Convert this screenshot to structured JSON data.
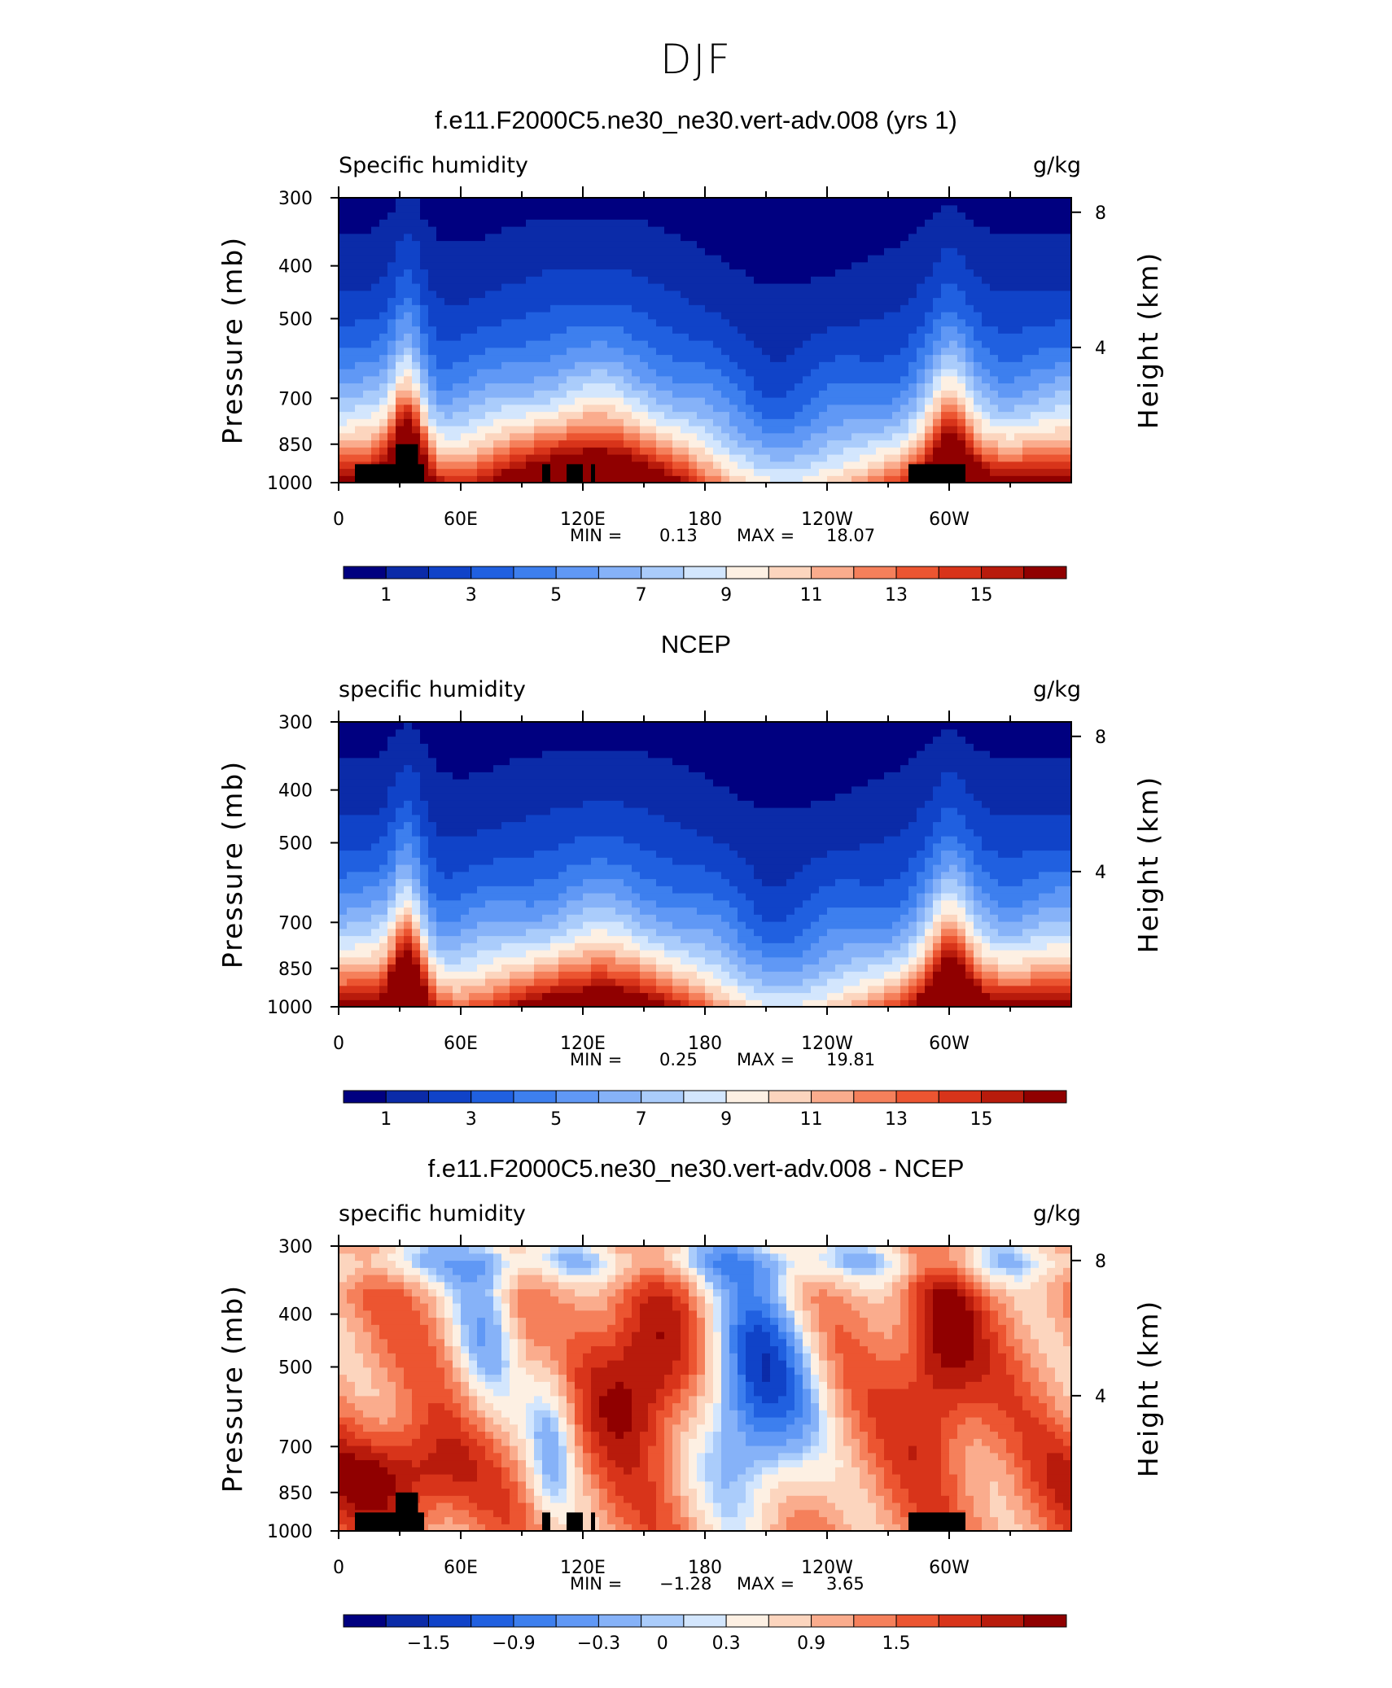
{
  "title": "DJF",
  "colormap": [
    "#000080",
    "#0b2ba8",
    "#1043c8",
    "#2060e0",
    "#3d7fee",
    "#6098f5",
    "#86b2f8",
    "#aaccfb",
    "#d3e6fd",
    "#fdf0e3",
    "#fcd5be",
    "#faac8d",
    "#f5805b",
    "#ec5531",
    "#d8341a",
    "#b81b0c",
    "#900000"
  ],
  "chart_data": [
    {
      "type": "heatmap",
      "panel_title": "f.e11.F2000C5.ne30_ne30.vert-adv.008 (yrs 1)",
      "variable": "Specific humidity",
      "units": "g/kg",
      "xlabel": "",
      "ylabel": "Pressure (mb)",
      "ylabel_right": "Height (km)",
      "x_ticks": [
        "0",
        "60E",
        "120E",
        "180",
        "120W",
        "60W"
      ],
      "x_tick_lon": [
        0,
        60,
        120,
        180,
        240,
        300
      ],
      "y_ticks": [
        "300",
        "400",
        "500",
        "700",
        "850",
        "1000"
      ],
      "y_tick_p": [
        300,
        400,
        500,
        700,
        850,
        1000
      ],
      "height_ticks": [
        "8",
        "4"
      ],
      "height_tick_km": [
        8,
        4
      ],
      "xlim": [
        0,
        360
      ],
      "ylim": [
        1000,
        300
      ],
      "min_label": "MIN =",
      "min": "0.13",
      "max_label": "MAX =",
      "max": "18.07",
      "levels": [
        0,
        1,
        2,
        3,
        4,
        5,
        6,
        7,
        8,
        9,
        10,
        11,
        12,
        13,
        14,
        15,
        16
      ],
      "colorbar_labels": [
        "1",
        "3",
        "5",
        "7",
        "9",
        "11",
        "13",
        "15"
      ],
      "field": "q_model",
      "show_topo": true
    },
    {
      "type": "heatmap",
      "panel_title": "NCEP",
      "variable": "specific humidity",
      "units": "g/kg",
      "xlabel": "",
      "ylabel": "Pressure (mb)",
      "ylabel_right": "Height (km)",
      "x_ticks": [
        "0",
        "60E",
        "120E",
        "180",
        "120W",
        "60W"
      ],
      "x_tick_lon": [
        0,
        60,
        120,
        180,
        240,
        300
      ],
      "y_ticks": [
        "300",
        "400",
        "500",
        "700",
        "850",
        "1000"
      ],
      "y_tick_p": [
        300,
        400,
        500,
        700,
        850,
        1000
      ],
      "height_ticks": [
        "8",
        "4"
      ],
      "height_tick_km": [
        8,
        4
      ],
      "xlim": [
        0,
        360
      ],
      "ylim": [
        1000,
        300
      ],
      "min_label": "MIN =",
      "min": "0.25",
      "max_label": "MAX =",
      "max": "19.81",
      "levels": [
        0,
        1,
        2,
        3,
        4,
        5,
        6,
        7,
        8,
        9,
        10,
        11,
        12,
        13,
        14,
        15,
        16
      ],
      "colorbar_labels": [
        "1",
        "3",
        "5",
        "7",
        "9",
        "11",
        "13",
        "15"
      ],
      "field": "q_obs",
      "show_topo": false
    },
    {
      "type": "heatmap",
      "panel_title": "f.e11.F2000C5.ne30_ne30.vert-adv.008 - NCEP",
      "variable": "specific humidity",
      "units": "g/kg",
      "xlabel": "",
      "ylabel": "Pressure (mb)",
      "ylabel_right": "Height (km)",
      "x_ticks": [
        "0",
        "60E",
        "120E",
        "180",
        "120W",
        "60W"
      ],
      "x_tick_lon": [
        0,
        60,
        120,
        180,
        240,
        300
      ],
      "y_ticks": [
        "300",
        "400",
        "500",
        "700",
        "850",
        "1000"
      ],
      "y_tick_p": [
        300,
        400,
        500,
        700,
        850,
        1000
      ],
      "height_ticks": [
        "8",
        "4"
      ],
      "height_tick_km": [
        8,
        4
      ],
      "xlim": [
        0,
        360
      ],
      "ylim": [
        1000,
        300
      ],
      "min_label": "MIN =",
      "min": "−1.28",
      "max_label": "MAX =",
      "max": "3.65",
      "levels": [
        -2.1,
        -1.8,
        -1.5,
        -1.2,
        -0.9,
        -0.6,
        -0.3,
        0,
        0.15,
        0.3,
        0.6,
        0.9,
        1.2,
        1.5,
        1.8,
        2.1,
        2.4
      ],
      "colorbar_labels": [
        "−1.5",
        "−0.9",
        "−0.3",
        "0",
        "0.3",
        "0.9",
        "1.5"
      ],
      "colorbar_label_pos": [
        2,
        4,
        6,
        7.5,
        9,
        11,
        13
      ],
      "field": "q_diff",
      "show_topo": true
    }
  ],
  "topography": [
    {
      "lon0": 8,
      "lon1": 42,
      "p": 925
    },
    {
      "lon0": 28,
      "lon1": 39,
      "p": 850
    },
    {
      "lon0": 100,
      "lon1": 104,
      "p": 925
    },
    {
      "lon0": 112,
      "lon1": 120,
      "p": 925
    },
    {
      "lon0": 124,
      "lon1": 126,
      "p": 925
    },
    {
      "lon0": 280,
      "lon1": 308,
      "p": 925
    }
  ]
}
